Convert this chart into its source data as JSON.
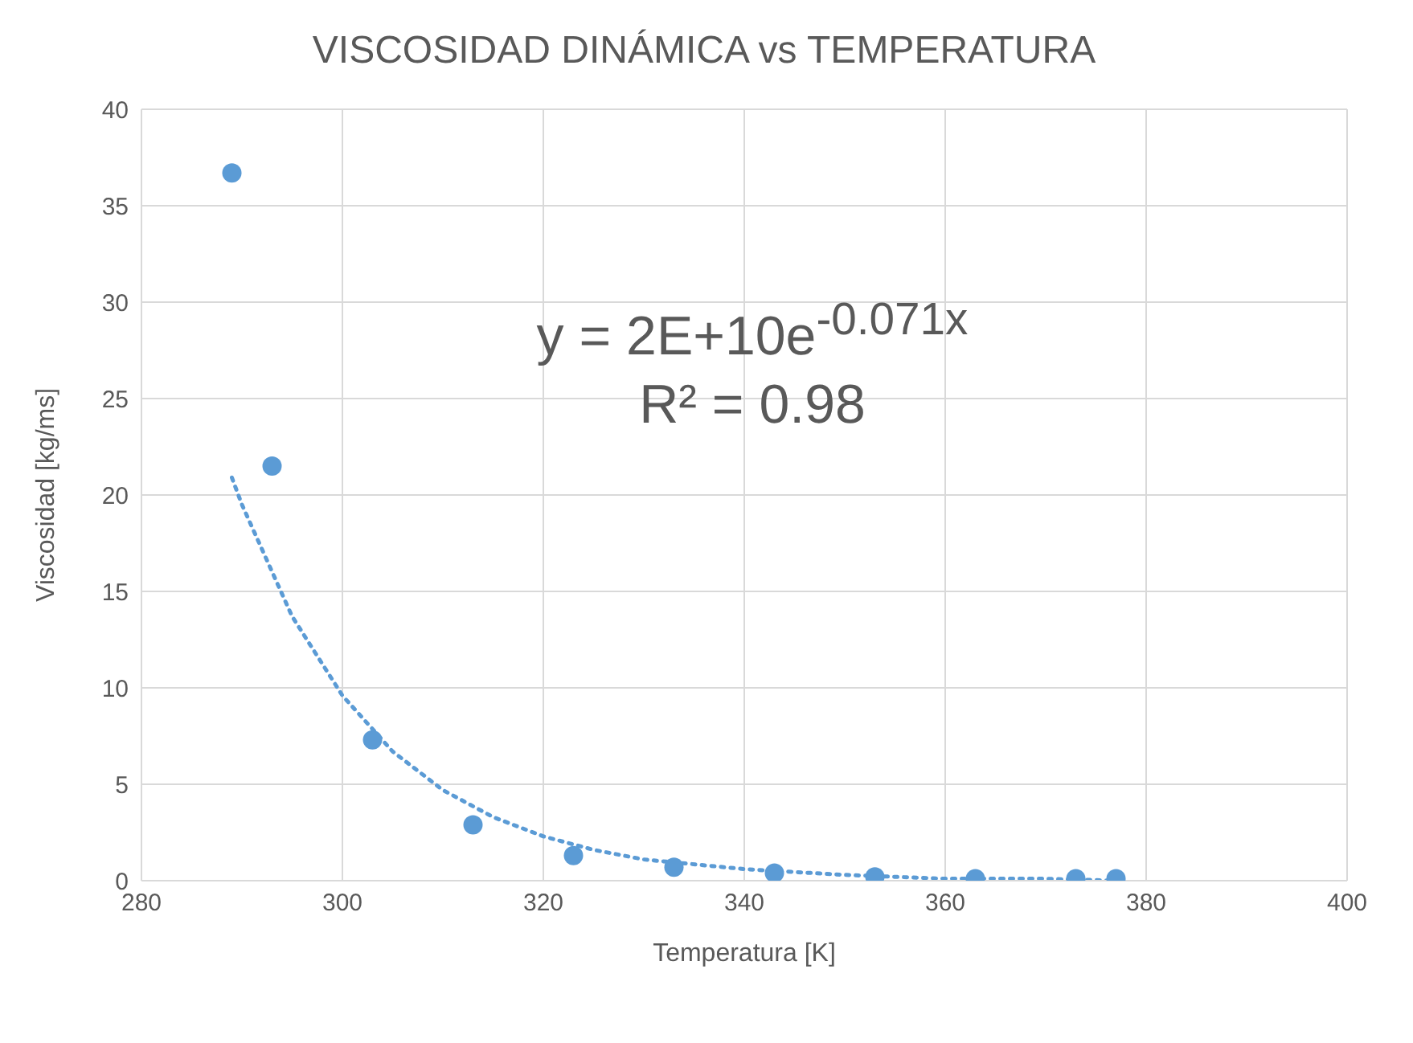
{
  "chart_data": {
    "type": "scatter",
    "title": "VISCOSIDAD DINÁMICA vs TEMPERATURA",
    "xlabel": "Temperatura [K]",
    "ylabel": "Viscosidad [kg/ms]",
    "series": [
      {
        "color": "#5b9bd5",
        "marker": "circle",
        "x": [
          289,
          293,
          303,
          313,
          323,
          333,
          343,
          353,
          363,
          373,
          377
        ],
        "values": [
          36.7,
          21.5,
          7.3,
          2.9,
          1.3,
          0.7,
          0.4,
          0.2,
          0.1,
          0.1,
          0.1
        ]
      },
      {
        "type": "line",
        "color": "#5b9bd5",
        "marker": "none",
        "line_style": "dotted",
        "x": [
          289,
          290,
          295,
          300,
          305,
          310,
          315,
          320,
          325,
          330,
          340,
          350,
          360,
          370,
          377
        ],
        "values": [
          20.9,
          19.5,
          13.7,
          9.6,
          6.7,
          4.7,
          3.3,
          2.3,
          1.6,
          1.1,
          0.6,
          0.3,
          0.1,
          0.1,
          0
        ]
      }
    ],
    "annotations": [
      "y = 2E+10e$^{-0.071x}$",
      "R² = 0.98"
    ],
    "xlim": [
      280,
      400
    ],
    "xticks": [
      280,
      300,
      320,
      340,
      360,
      380,
      400
    ],
    "ylim": [
      0,
      40
    ],
    "yticks": [
      0,
      5,
      10,
      15,
      20,
      25,
      30,
      35,
      40
    ],
    "grid": true,
    "legend": false
  }
}
